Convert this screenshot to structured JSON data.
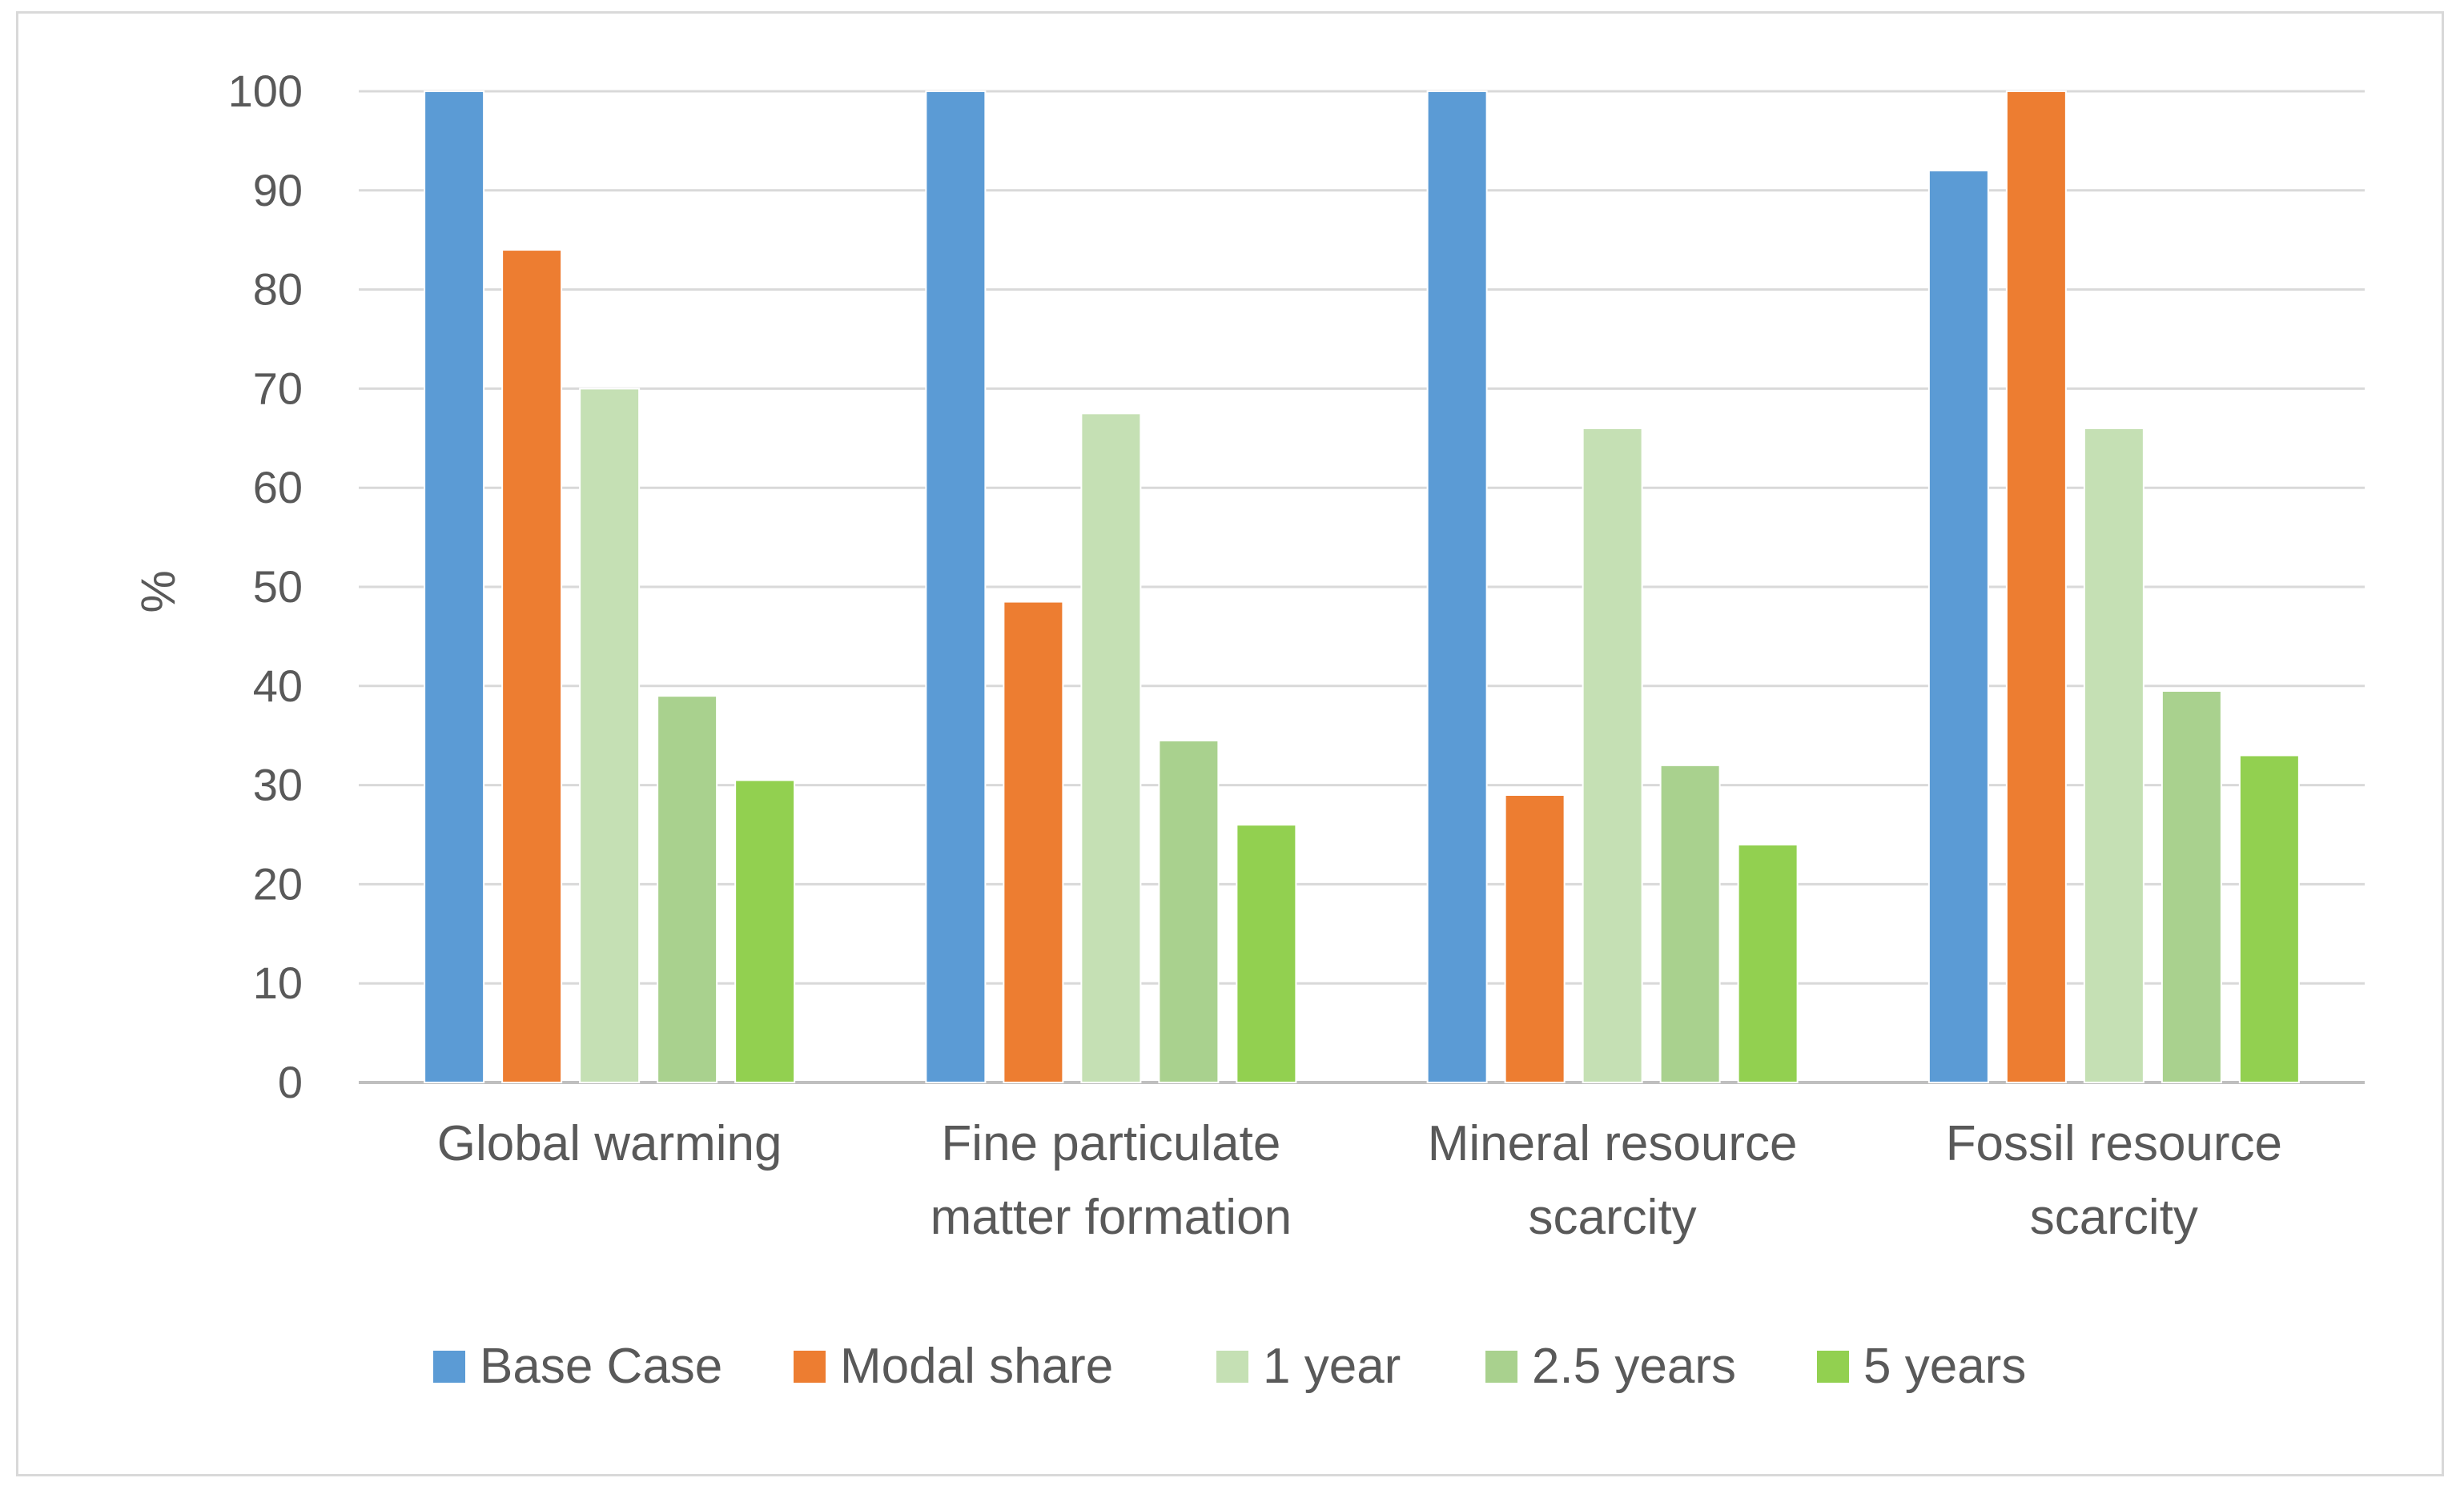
{
  "chart_data": {
    "type": "bar",
    "title": "",
    "xlabel": "",
    "ylabel": "%",
    "ylim": [
      0,
      100
    ],
    "yticks": [
      0,
      10,
      20,
      30,
      40,
      50,
      60,
      70,
      80,
      90,
      100
    ],
    "grid": true,
    "legend_position": "bottom",
    "categories": [
      [
        "Global warming"
      ],
      [
        "Fine particulate",
        "matter formation"
      ],
      [
        "Mineral resource",
        "scarcity"
      ],
      [
        "Fossil resource",
        "scarcity"
      ]
    ],
    "series": [
      {
        "name": "Base Case",
        "color": "#5b9bd5",
        "values": [
          100,
          100,
          100,
          92
        ]
      },
      {
        "name": "Modal share",
        "color": "#ed7d31",
        "values": [
          84,
          48.5,
          29,
          100
        ]
      },
      {
        "name": "1 year",
        "color": "#c5e0b4",
        "values": [
          70,
          67.5,
          66,
          66
        ]
      },
      {
        "name": "2.5 years",
        "color": "#a9d18e",
        "values": [
          39,
          34.5,
          32,
          39.5
        ]
      },
      {
        "name": "5 years",
        "color": "#92d050",
        "values": [
          30.5,
          26,
          24,
          33
        ]
      }
    ]
  }
}
